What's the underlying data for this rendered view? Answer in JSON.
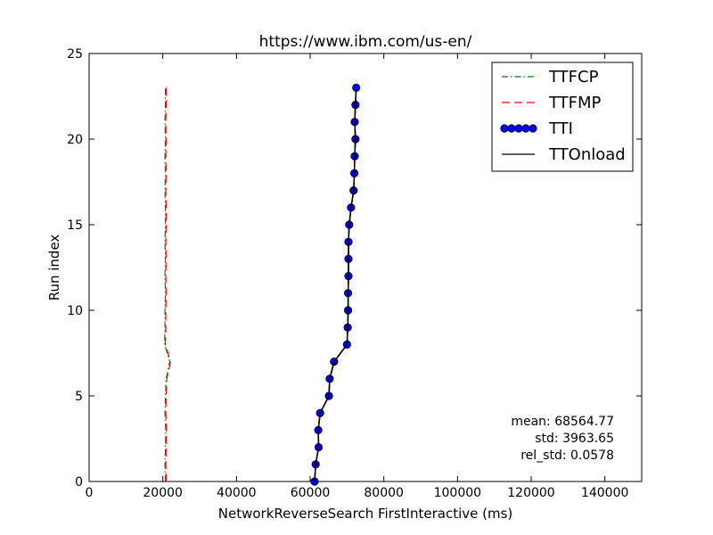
{
  "chart_data": {
    "type": "line",
    "title": "https://www.ibm.com/us-en/",
    "xlabel": "NetworkReverseSearch FirstInteractive (ms)",
    "ylabel": "Run index",
    "xlim": [
      0,
      150000
    ],
    "ylim": [
      0,
      25
    ],
    "xticks": [
      0,
      20000,
      40000,
      60000,
      80000,
      100000,
      120000,
      140000
    ],
    "xtick_labels": [
      "0",
      "20000",
      "40000",
      "60000",
      "80000",
      "100000",
      "120000",
      "140000"
    ],
    "yticks": [
      0,
      5,
      10,
      15,
      20,
      25
    ],
    "ytick_labels": [
      "0",
      "5",
      "10",
      "15",
      "20",
      "25"
    ],
    "grid": false,
    "legend_position": "top-right",
    "series": [
      {
        "name": "TTFCP",
        "color": "#008000",
        "style": "dashdot",
        "marker": "none",
        "x": [
          20700,
          20600,
          20700,
          20800,
          20600,
          20700,
          20900,
          21900,
          20500,
          20600,
          20600,
          20700,
          20600,
          20700,
          20600,
          20700,
          20700,
          20600,
          20700,
          20600,
          20700,
          20600,
          20700,
          20700
        ],
        "y": [
          0,
          1,
          2,
          3,
          4,
          5,
          6,
          7,
          8,
          9,
          10,
          11,
          12,
          13,
          14,
          15,
          16,
          17,
          18,
          19,
          20,
          21,
          22,
          23
        ]
      },
      {
        "name": "TTFMP",
        "color": "#ff0000",
        "style": "dashed",
        "marker": "none",
        "x": [
          20900,
          20800,
          20900,
          21000,
          20800,
          20900,
          21100,
          22100,
          20700,
          20800,
          20800,
          20900,
          20800,
          20900,
          20800,
          20900,
          20900,
          20800,
          20900,
          20800,
          20900,
          20800,
          20900,
          20900
        ],
        "y": [
          0,
          1,
          2,
          3,
          4,
          5,
          6,
          7,
          8,
          9,
          10,
          11,
          12,
          13,
          14,
          15,
          16,
          17,
          18,
          19,
          20,
          21,
          22,
          23
        ]
      },
      {
        "name": "TTI",
        "color": "#0000ff",
        "style": "solid",
        "marker": "circle",
        "x": [
          61200,
          61500,
          62300,
          62200,
          62700,
          65100,
          65300,
          66500,
          70000,
          70200,
          70300,
          70300,
          70400,
          70400,
          70400,
          70600,
          71100,
          71800,
          72000,
          72100,
          72300,
          72100,
          72300,
          72500
        ],
        "y": [
          0,
          1,
          2,
          3,
          4,
          5,
          6,
          7,
          8,
          9,
          10,
          11,
          12,
          13,
          14,
          15,
          16,
          17,
          18,
          19,
          20,
          21,
          22,
          23
        ]
      },
      {
        "name": "TTOnload",
        "color": "#000000",
        "style": "solid",
        "marker": "none",
        "x": [
          61200,
          61500,
          62300,
          62200,
          62700,
          65100,
          65300,
          66500,
          70000,
          70200,
          70300,
          70300,
          70400,
          70400,
          70400,
          70600,
          71100,
          71800,
          72000,
          72100,
          72300,
          72100,
          72300,
          72500
        ],
        "y": [
          0,
          1,
          2,
          3,
          4,
          5,
          6,
          7,
          8,
          9,
          10,
          11,
          12,
          13,
          14,
          15,
          16,
          17,
          18,
          19,
          20,
          21,
          22,
          23
        ]
      }
    ],
    "annotations": [
      "mean: 68564.77",
      "std: 3963.65",
      "rel_std: 0.0578"
    ]
  }
}
